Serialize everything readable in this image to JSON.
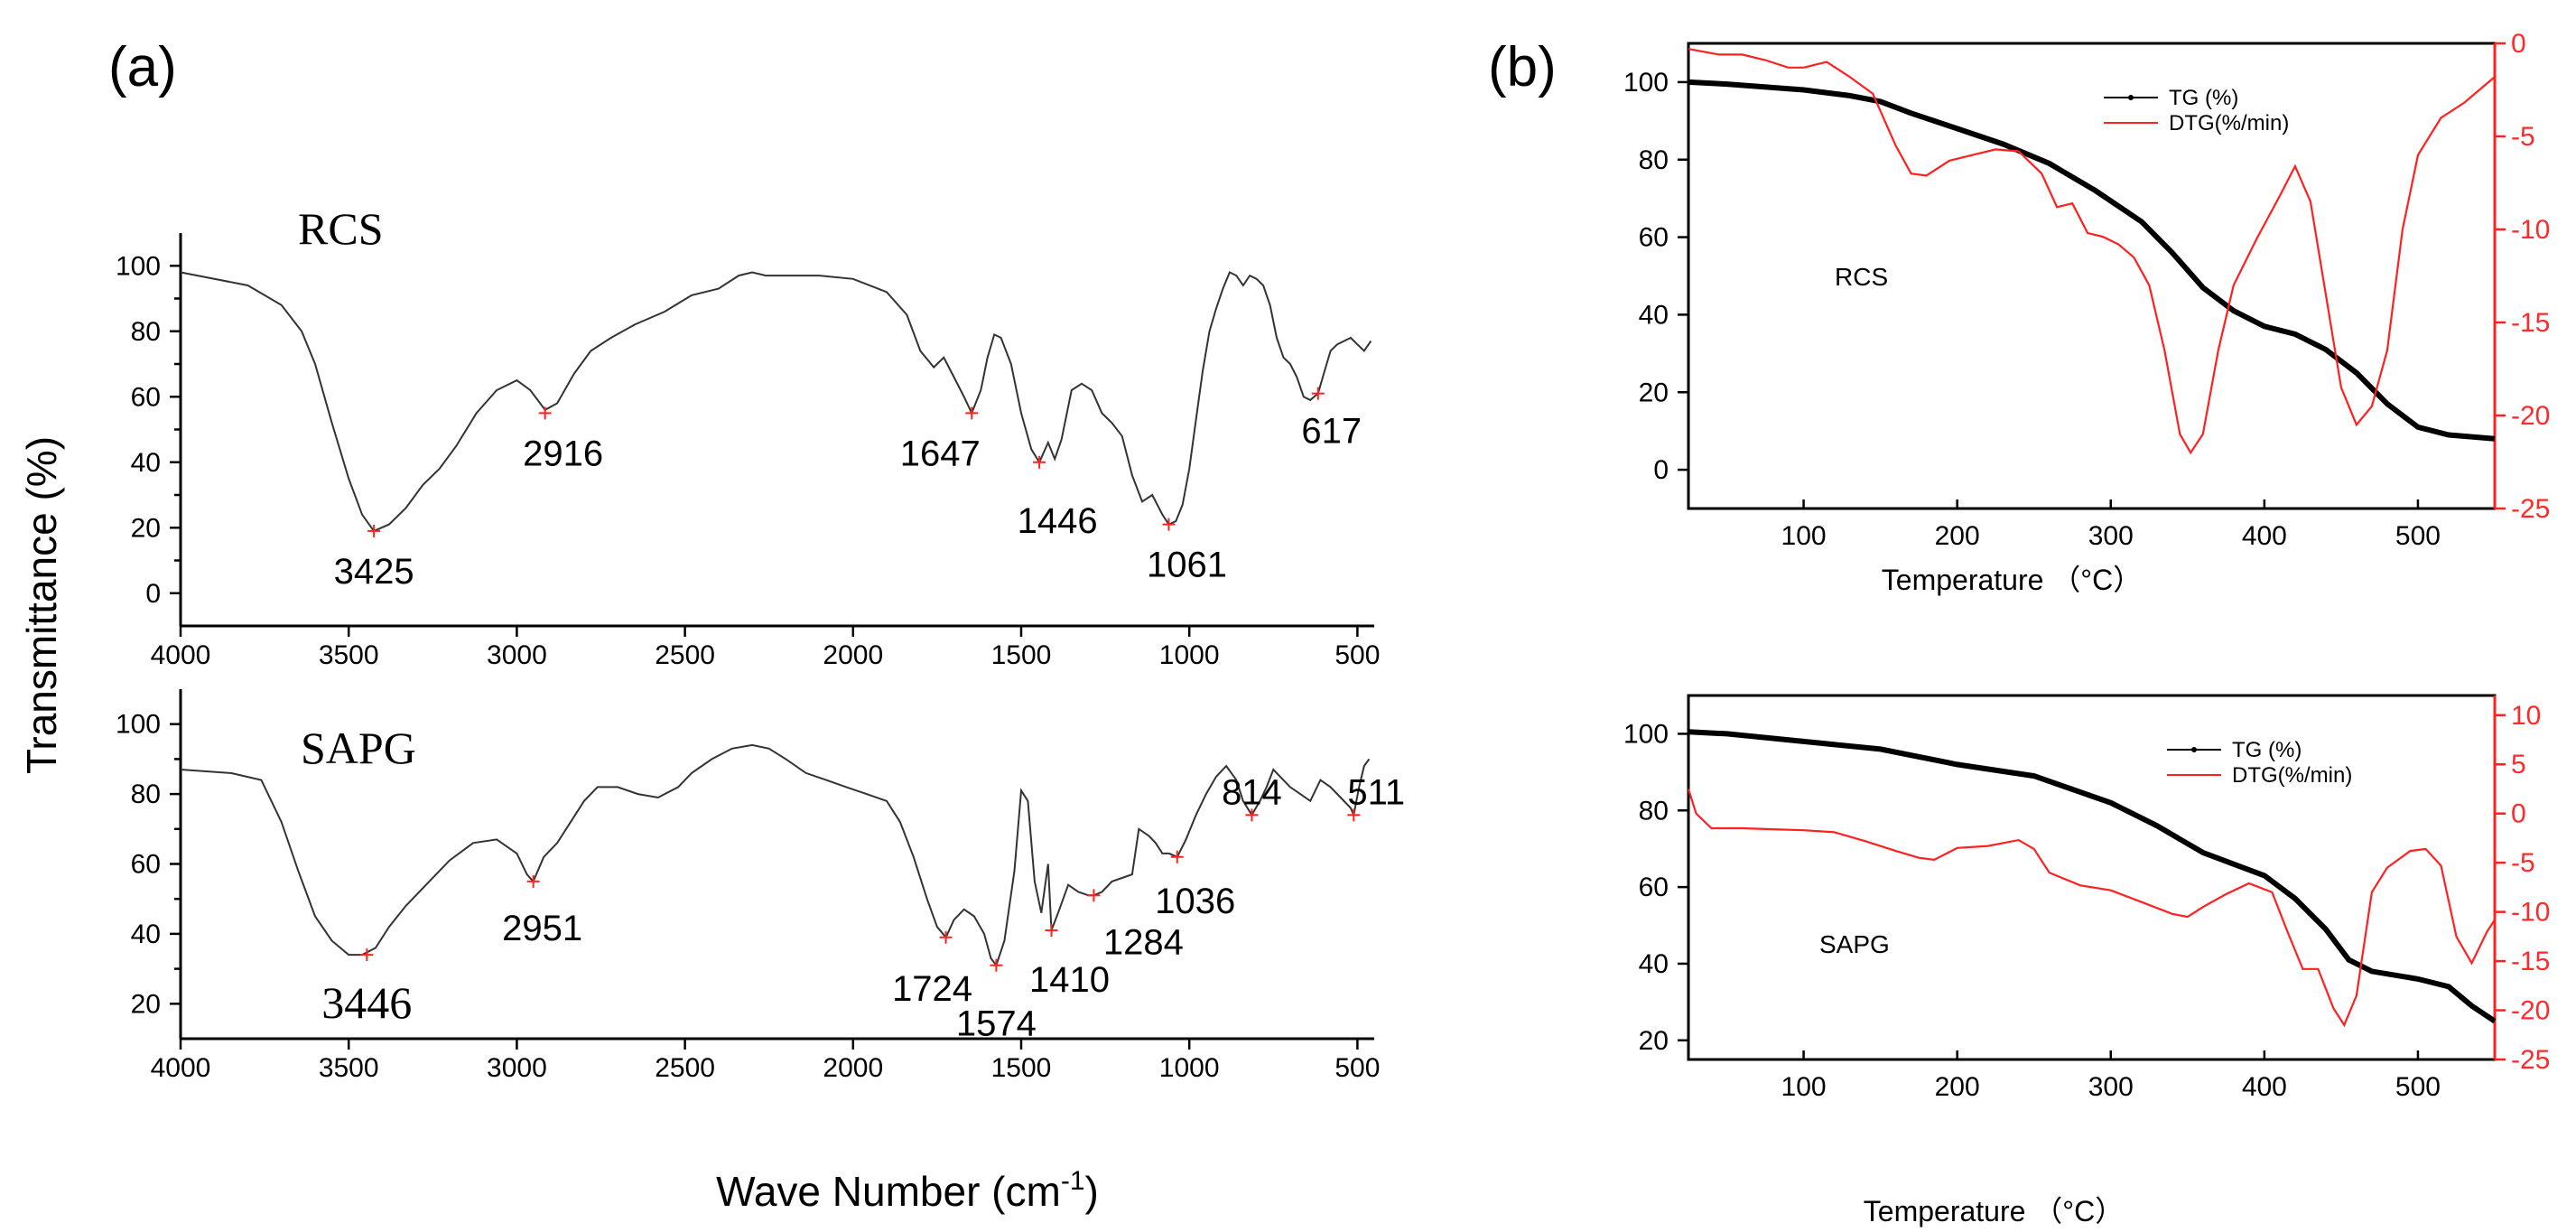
{
  "figure": {
    "panel_a_label": "(a)",
    "panel_b_label": "(b)",
    "ftir_ylabel": "Transmittance (%)",
    "ftir_xlabel_main": "Wave Number (cm",
    "ftir_xlabel_sup": "-1",
    "ftir_xlabel_end": ")"
  },
  "chart_data": [
    {
      "id": "ftir-rcs",
      "type": "line",
      "title": "RCS",
      "xlabel": "Wave Number (cm-1)",
      "ylabel": "Transmittance (%)",
      "xlim": [
        4000,
        450
      ],
      "ylim": [
        -10,
        110
      ],
      "xticks": [
        4000,
        3500,
        3000,
        2500,
        2000,
        1500,
        1000,
        500
      ],
      "yticks": [
        0,
        20,
        40,
        60,
        80,
        100
      ],
      "series": [
        {
          "name": "RCS",
          "x": [
            4000,
            3800,
            3700,
            3640,
            3600,
            3550,
            3500,
            3460,
            3425,
            3380,
            3330,
            3280,
            3230,
            3180,
            3120,
            3060,
            3000,
            2960,
            2916,
            2880,
            2830,
            2780,
            2720,
            2650,
            2560,
            2480,
            2400,
            2340,
            2300,
            2260,
            2200,
            2100,
            2000,
            1900,
            1840,
            1800,
            1760,
            1730,
            1700,
            1670,
            1647,
            1620,
            1600,
            1580,
            1560,
            1530,
            1500,
            1470,
            1446,
            1420,
            1400,
            1380,
            1350,
            1320,
            1290,
            1260,
            1230,
            1200,
            1170,
            1140,
            1110,
            1080,
            1061,
            1040,
            1020,
            1000,
            980,
            960,
            940,
            920,
            900,
            880,
            860,
            840,
            820,
            800,
            780,
            760,
            740,
            720,
            700,
            680,
            660,
            640,
            617,
            600,
            580,
            560,
            540,
            520,
            500,
            480,
            460
          ],
          "values": [
            98,
            94,
            88,
            80,
            70,
            52,
            35,
            24,
            19,
            21,
            26,
            33,
            38,
            45,
            55,
            62,
            65,
            62,
            56,
            58,
            67,
            74,
            78,
            82,
            86,
            91,
            93,
            97,
            98,
            97,
            97,
            97,
            96,
            92,
            85,
            74,
            69,
            72,
            66,
            60,
            55,
            62,
            72,
            79,
            78,
            70,
            55,
            44,
            40,
            46,
            41,
            47,
            62,
            64,
            62,
            55,
            52,
            48,
            36,
            28,
            30,
            24,
            21,
            22,
            27,
            38,
            53,
            68,
            80,
            87,
            93,
            98,
            97,
            94,
            97,
            96,
            94,
            88,
            78,
            72,
            70,
            66,
            60,
            59,
            61,
            67,
            74,
            76,
            77,
            78,
            76,
            74,
            77
          ]
        }
      ],
      "annotations": [
        {
          "label": "3425",
          "x": 3425,
          "y": 19
        },
        {
          "label": "2916",
          "x": 2916,
          "y": 55
        },
        {
          "label": "1647",
          "x": 1647,
          "y": 55
        },
        {
          "label": "1446",
          "x": 1446,
          "y": 40
        },
        {
          "label": "1061",
          "x": 1061,
          "y": 21
        },
        {
          "label": "617",
          "x": 617,
          "y": 61
        }
      ]
    },
    {
      "id": "ftir-sapg",
      "type": "line",
      "title": "SAPG",
      "xlabel": "Wave Number (cm-1)",
      "ylabel": "Transmittance (%)",
      "xlim": [
        4000,
        450
      ],
      "ylim": [
        10,
        110
      ],
      "xticks": [
        4000,
        3500,
        3000,
        2500,
        2000,
        1500,
        1000,
        500
      ],
      "yticks": [
        20,
        40,
        60,
        80,
        100
      ],
      "series": [
        {
          "name": "SAPG",
          "x": [
            4000,
            3850,
            3760,
            3700,
            3650,
            3600,
            3550,
            3500,
            3460,
            3420,
            3380,
            3330,
            3270,
            3200,
            3130,
            3060,
            3000,
            2970,
            2951,
            2920,
            2880,
            2840,
            2800,
            2760,
            2700,
            2640,
            2580,
            2520,
            2480,
            2420,
            2360,
            2300,
            2250,
            2200,
            2140,
            2080,
            2020,
            1960,
            1900,
            1860,
            1820,
            1780,
            1750,
            1724,
            1700,
            1670,
            1640,
            1610,
            1590,
            1574,
            1550,
            1520,
            1500,
            1480,
            1460,
            1440,
            1420,
            1410,
            1390,
            1360,
            1330,
            1300,
            1284,
            1260,
            1230,
            1200,
            1170,
            1150,
            1120,
            1100,
            1080,
            1060,
            1036,
            1010,
            980,
            950,
            920,
            890,
            860,
            840,
            814,
            790,
            770,
            750,
            730,
            700,
            670,
            640,
            610,
            580,
            550,
            520,
            511,
            495,
            480,
            465
          ],
          "values": [
            87,
            86,
            84,
            72,
            58,
            45,
            38,
            34,
            34,
            36,
            42,
            48,
            54,
            61,
            66,
            67,
            63,
            57,
            55,
            62,
            66,
            72,
            78,
            82,
            82,
            80,
            79,
            82,
            86,
            90,
            93,
            94,
            93,
            90,
            86,
            84,
            82,
            80,
            78,
            72,
            62,
            50,
            42,
            39,
            44,
            47,
            45,
            40,
            33,
            31,
            38,
            58,
            81,
            78,
            55,
            46,
            60,
            41,
            46,
            54,
            52,
            51,
            51,
            52,
            55,
            56,
            57,
            70,
            68,
            66,
            63,
            63,
            62,
            67,
            74,
            80,
            85,
            88,
            84,
            78,
            74,
            78,
            82,
            87,
            85,
            82,
            80,
            78,
            84,
            82,
            79,
            76,
            74,
            82,
            88,
            90
          ]
        }
      ],
      "annotations": [
        {
          "label": "3446",
          "x": 3446,
          "y": 34
        },
        {
          "label": "2951",
          "x": 2951,
          "y": 55
        },
        {
          "label": "1724",
          "x": 1724,
          "y": 39
        },
        {
          "label": "1574",
          "x": 1574,
          "y": 31
        },
        {
          "label": "1410",
          "x": 1410,
          "y": 41
        },
        {
          "label": "1284",
          "x": 1284,
          "y": 51
        },
        {
          "label": "1036",
          "x": 1036,
          "y": 62
        },
        {
          "label": "814",
          "x": 814,
          "y": 74
        },
        {
          "label": "511",
          "x": 511,
          "y": 74
        }
      ]
    },
    {
      "id": "tg-rcs",
      "type": "line",
      "title": "RCS",
      "xlabel": "Temperature （°C）",
      "ylabel": "",
      "xlim": [
        25,
        550
      ],
      "ylim": [
        -10,
        110
      ],
      "y2lim": [
        -25,
        0
      ],
      "xticks": [
        100,
        200,
        300,
        400,
        500
      ],
      "yticks": [
        0,
        20,
        40,
        60,
        80,
        100
      ],
      "y2ticks": [
        0,
        -5,
        -10,
        -15,
        -20,
        -25
      ],
      "legend": [
        "TG (%)",
        "DTG(%/min)"
      ],
      "legend_position": "top-center",
      "series": [
        {
          "name": "TG (%)",
          "axis": "left",
          "x": [
            25,
            50,
            100,
            130,
            150,
            170,
            200,
            230,
            260,
            290,
            320,
            340,
            360,
            380,
            400,
            420,
            440,
            460,
            480,
            500,
            520,
            550
          ],
          "values": [
            100,
            99.5,
            98,
            96.5,
            95,
            92,
            88,
            84,
            79,
            72,
            64,
            56,
            47,
            41,
            37,
            35,
            31,
            25,
            17,
            11,
            9,
            8
          ]
        },
        {
          "name": "DTG(%/min)",
          "axis": "right",
          "x": [
            25,
            45,
            60,
            75,
            90,
            100,
            115,
            130,
            145,
            160,
            170,
            180,
            195,
            210,
            225,
            240,
            255,
            265,
            275,
            285,
            295,
            305,
            315,
            325,
            335,
            345,
            352,
            360,
            370,
            380,
            395,
            410,
            420,
            430,
            440,
            450,
            460,
            470,
            480,
            490,
            500,
            515,
            530,
            550
          ],
          "values": [
            -0.3,
            -0.6,
            -0.6,
            -0.9,
            -1.3,
            -1.3,
            -1.0,
            -1.8,
            -2.7,
            -5.5,
            -7.0,
            -7.1,
            -6.3,
            -6.0,
            -5.7,
            -5.8,
            -7.0,
            -8.8,
            -8.6,
            -10.2,
            -10.4,
            -10.8,
            -11.5,
            -13.0,
            -16.5,
            -21.0,
            -22.0,
            -21.0,
            -16.5,
            -13.0,
            -10.5,
            -8.2,
            -6.6,
            -8.5,
            -13.5,
            -18.5,
            -20.5,
            -19.5,
            -16.5,
            -10.0,
            -6.0,
            -4.0,
            -3.2,
            -1.8
          ]
        }
      ]
    },
    {
      "id": "tg-sapg",
      "type": "line",
      "title": "SAPG",
      "xlabel": "Temperature （°C）",
      "ylabel": "",
      "xlim": [
        25,
        550
      ],
      "ylim": [
        15,
        110
      ],
      "y2lim": [
        -25,
        12
      ],
      "xticks": [
        100,
        200,
        300,
        400,
        500
      ],
      "yticks": [
        20,
        40,
        60,
        80,
        100
      ],
      "y2ticks": [
        10,
        5,
        0,
        -5,
        -10,
        -15,
        -20,
        -25
      ],
      "legend": [
        "TG (%)",
        "DTG(%/min)"
      ],
      "legend_position": "top-right",
      "series": [
        {
          "name": "TG (%)",
          "axis": "left",
          "x": [
            25,
            50,
            100,
            150,
            200,
            250,
            300,
            330,
            360,
            380,
            400,
            420,
            440,
            455,
            470,
            500,
            520,
            535,
            550
          ],
          "values": [
            100.5,
            100,
            98,
            96,
            92,
            89,
            82,
            76,
            69,
            66,
            63,
            57,
            49,
            41,
            38,
            36,
            34,
            29,
            25
          ]
        },
        {
          "name": "DTG(%/min)",
          "axis": "right",
          "x": [
            25,
            30,
            40,
            60,
            80,
            100,
            120,
            140,
            160,
            175,
            185,
            200,
            220,
            240,
            250,
            260,
            280,
            300,
            320,
            340,
            350,
            360,
            375,
            390,
            405,
            415,
            425,
            435,
            445,
            452,
            460,
            470,
            480,
            495,
            505,
            515,
            525,
            535,
            545,
            550
          ],
          "values": [
            2.5,
            0,
            -1.5,
            -1.5,
            -1.6,
            -1.7,
            -1.9,
            -2.8,
            -3.8,
            -4.5,
            -4.7,
            -3.5,
            -3.3,
            -2.7,
            -3.6,
            -6.0,
            -7.3,
            -7.8,
            -9.0,
            -10.2,
            -10.5,
            -9.5,
            -8.2,
            -7.1,
            -8.0,
            -12.0,
            -15.8,
            -15.8,
            -19.8,
            -21.5,
            -18.5,
            -8.0,
            -5.5,
            -3.8,
            -3.6,
            -5.3,
            -12.5,
            -15.2,
            -12.0,
            -10.8
          ]
        }
      ]
    }
  ],
  "panels": {
    "ftir_rcs_label": "RCS",
    "ftir_sapg_label": "SAPG",
    "tg_rcs_label": "RCS",
    "tg_sapg_label": "SAPG",
    "tg_xlabel": "Temperature （°C）"
  }
}
